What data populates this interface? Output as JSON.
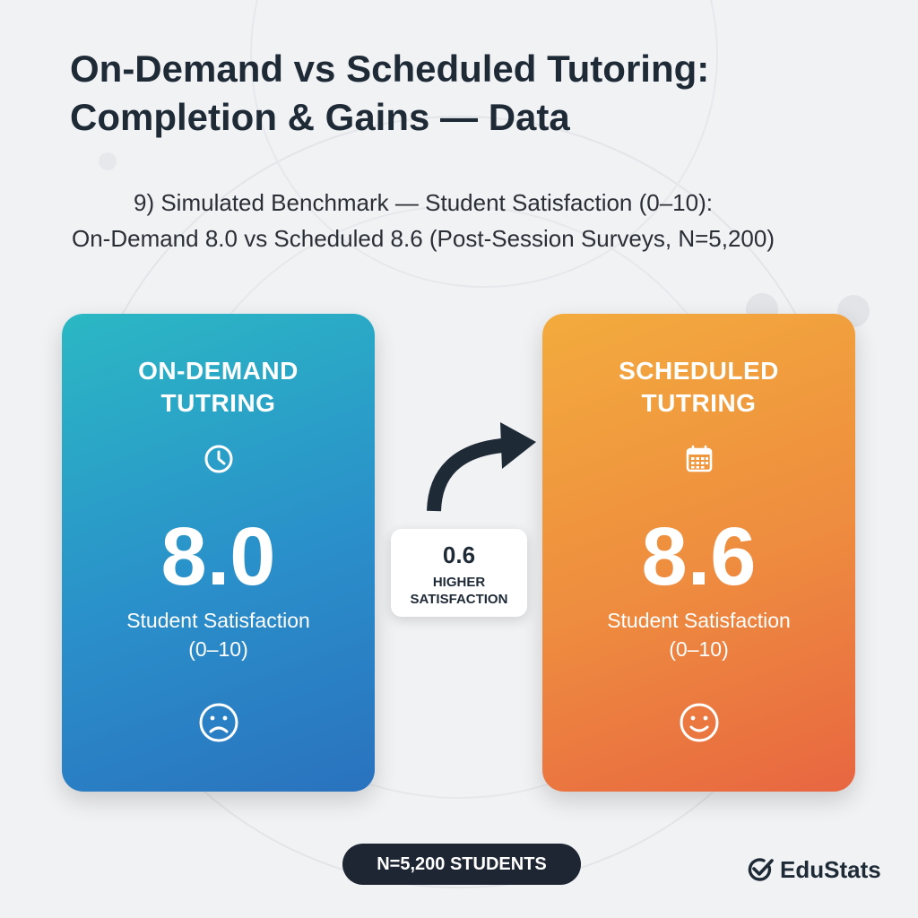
{
  "title": "On-Demand vs Scheduled Tutoring: Completion & Gains — Data",
  "subtitle": {
    "line1": "9) Simulated Benchmark — Student Satisfaction (0–10):",
    "line2": "On-Demand 8.0 vs Scheduled 8.6 (Post-Session Surveys, N=5,200)"
  },
  "chart_data": {
    "type": "bar",
    "categories": [
      "ON-DEMAND TUTRING",
      "SCHEDULED TUTRING"
    ],
    "values": [
      8.0,
      8.6
    ],
    "value_labels": [
      "8.0",
      "8.6"
    ],
    "metric": "Student Satisfaction",
    "range_label": "(0–10)",
    "ylim": [
      0,
      10
    ],
    "difference": {
      "value": "0.6",
      "label_line1": "HIGHER",
      "label_line2": "SATISFACTION"
    },
    "sample": "N=5,200 STUDENTS"
  },
  "cards": [
    {
      "title_line1": "ON-DEMAND",
      "title_line2": "TUTRING",
      "icon": "clock-icon",
      "face": "sad-face-icon",
      "color_start": "#2bb8c4",
      "color_end": "#2a72be"
    },
    {
      "title_line1": "SCHEDULED",
      "title_line2": "TUTRING",
      "icon": "calendar-icon",
      "face": "smile-face-icon",
      "color_start": "#f3ab3d",
      "color_end": "#e86641"
    }
  ],
  "brand": {
    "name": "EduStats",
    "icon": "check-circle-icon"
  }
}
